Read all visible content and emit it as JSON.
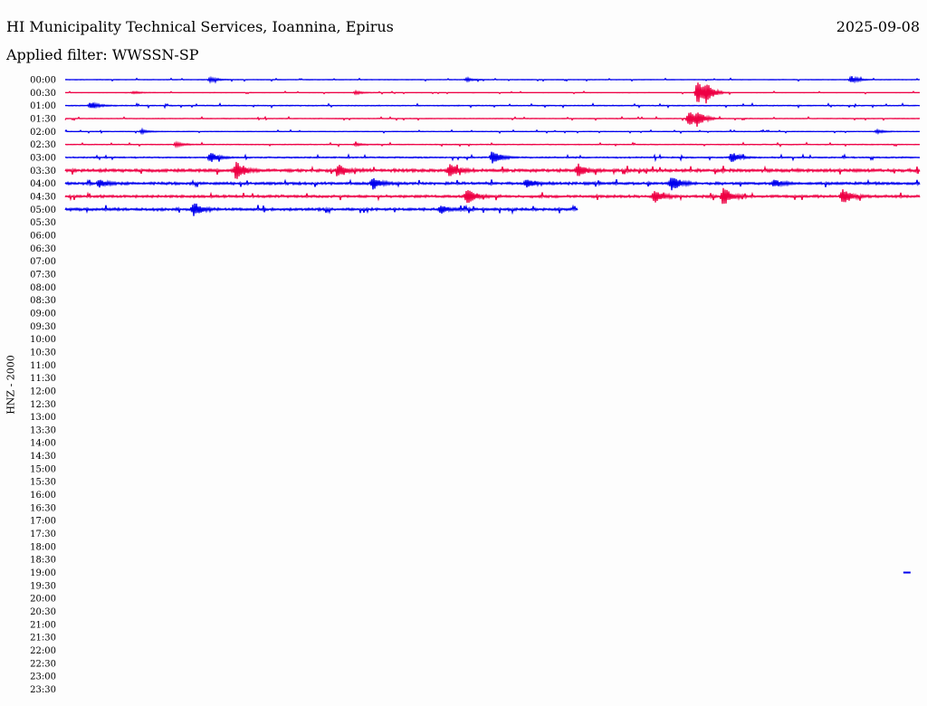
{
  "header": {
    "title": "HI Municipality Technical Services, Ioannina, Epirus",
    "date": "2025-09-08",
    "filter": "Applied filter: WWSSN-SP"
  },
  "chart_data": {
    "type": "line",
    "title": "HI Municipality Technical Services, Ioannina, Epirus",
    "subtitle": "Applied filter: WWSSN-SP",
    "date": "2025-09-08",
    "ylabel": "HNZ - 2000",
    "xlabel": "",
    "row_labels": [
      "00:00",
      "00:30",
      "01:00",
      "01:30",
      "02:00",
      "02:30",
      "03:00",
      "03:30",
      "04:00",
      "04:30",
      "05:00",
      "05:30",
      "06:00",
      "06:30",
      "07:00",
      "07:30",
      "08:00",
      "08:30",
      "09:00",
      "09:30",
      "10:00",
      "10:30",
      "11:00",
      "11:30",
      "12:00",
      "12:30",
      "13:00",
      "13:30",
      "14:00",
      "14:30",
      "15:00",
      "15:30",
      "16:00",
      "16:30",
      "17:00",
      "17:30",
      "18:00",
      "18:30",
      "19:00",
      "19:30",
      "20:00",
      "20:30",
      "21:00",
      "21:30",
      "22:00",
      "22:30",
      "23:00",
      "23:30"
    ],
    "colors": {
      "even": "#0000ee",
      "odd": "#ee0044"
    },
    "rows": [
      {
        "label": "00:00",
        "coverage": 1.0,
        "noise": 0.12,
        "events": [
          [
            0.17,
            3
          ],
          [
            0.47,
            2
          ],
          [
            0.92,
            4
          ]
        ]
      },
      {
        "label": "00:30",
        "coverage": 1.0,
        "noise": 0.08,
        "events": [
          [
            0.08,
            1.5
          ],
          [
            0.34,
            2
          ],
          [
            0.74,
            14
          ],
          [
            0.75,
            8
          ]
        ]
      },
      {
        "label": "01:00",
        "coverage": 1.0,
        "noise": 0.3,
        "events": [
          [
            0.03,
            4
          ]
        ]
      },
      {
        "label": "01:30",
        "coverage": 1.0,
        "noise": 0.2,
        "events": [
          [
            0.73,
            10
          ],
          [
            0.74,
            7
          ]
        ]
      },
      {
        "label": "02:00",
        "coverage": 1.0,
        "noise": 0.15,
        "events": [
          [
            0.09,
            2
          ],
          [
            0.95,
            2
          ]
        ]
      },
      {
        "label": "02:30",
        "coverage": 1.0,
        "noise": 0.25,
        "events": [
          [
            0.13,
            2.5
          ],
          [
            0.34,
            1.5
          ]
        ]
      },
      {
        "label": "03:00",
        "coverage": 1.0,
        "noise": 0.5,
        "events": [
          [
            0.17,
            6
          ],
          [
            0.5,
            8
          ],
          [
            0.78,
            6
          ]
        ]
      },
      {
        "label": "03:30",
        "coverage": 1.0,
        "noise": 1.2,
        "events": [
          [
            0.2,
            11
          ],
          [
            0.32,
            6
          ],
          [
            0.45,
            9
          ],
          [
            0.6,
            7
          ]
        ]
      },
      {
        "label": "04:00",
        "coverage": 1.0,
        "noise": 1.0,
        "events": [
          [
            0.04,
            4
          ],
          [
            0.36,
            7
          ],
          [
            0.54,
            5
          ],
          [
            0.71,
            9
          ],
          [
            0.83,
            4
          ]
        ]
      },
      {
        "label": "04:30",
        "coverage": 1.0,
        "noise": 1.0,
        "events": [
          [
            0.47,
            9
          ],
          [
            0.69,
            8
          ],
          [
            0.77,
            11
          ],
          [
            0.91,
            9
          ]
        ]
      },
      {
        "label": "05:00",
        "coverage": 0.6,
        "noise": 1.0,
        "events": [
          [
            0.15,
            8
          ],
          [
            0.44,
            4
          ]
        ]
      }
    ],
    "marker": {
      "label": "19:00",
      "position": 0.985
    },
    "grid": false,
    "legend": "none"
  }
}
